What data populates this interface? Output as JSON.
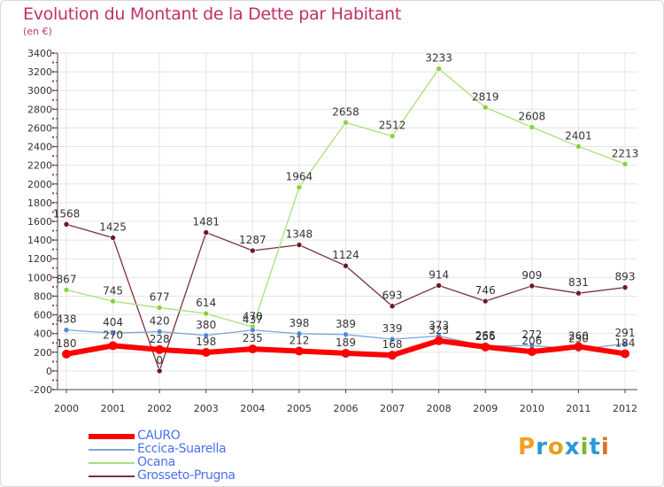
{
  "title": "Evolution du Montant de la Dette par Habitant",
  "subtitle": "(en €)",
  "brand": {
    "text": "Proxiti",
    "letters": [
      {
        "ch": "P",
        "color": "#f0a020"
      },
      {
        "ch": "r",
        "color": "#2a9ad8"
      },
      {
        "ch": "o",
        "color": "#e8a020"
      },
      {
        "ch": "x",
        "color": "#2a9ad8"
      },
      {
        "ch": "i",
        "color": "#7ab830"
      },
      {
        "ch": "t",
        "color": "#2a9ad8"
      },
      {
        "ch": "i",
        "color": "#e07020"
      }
    ]
  },
  "chart_data": {
    "type": "line",
    "title": "Evolution du Montant de la Dette par Habitant",
    "subtitle": "(en €)",
    "xlabel": "",
    "ylabel": "",
    "x": [
      "2000",
      "2001",
      "2002",
      "2003",
      "2004",
      "2005",
      "2006",
      "2007",
      "2008",
      "2009",
      "2010",
      "2011",
      "2012"
    ],
    "ylim": [
      -200,
      3400
    ],
    "yticks": [
      -200,
      0,
      200,
      400,
      600,
      800,
      1000,
      1200,
      1400,
      1600,
      1800,
      2000,
      2200,
      2400,
      2600,
      2800,
      3000,
      3200,
      3400
    ],
    "grid": true,
    "legend": "bottom-left",
    "series": [
      {
        "name": "CAURO",
        "color": "#ff0000",
        "values": [
          180,
          270,
          228,
          198,
          235,
          212,
          189,
          168,
          323,
          256,
          206,
          260,
          184
        ]
      },
      {
        "name": "Eccica-Suarella",
        "color": "#6699cc",
        "values": [
          438,
          404,
          420,
          380,
          437,
          398,
          389,
          339,
          373,
          265,
          272,
          230,
          291
        ]
      },
      {
        "name": "Ocana",
        "color": "#99dd66",
        "values": [
          867,
          745,
          677,
          614,
          470,
          null,
          null,
          null,
          null,
          null,
          null,
          null,
          null
        ],
        "values_all": [
          867,
          745,
          677,
          614,
          470,
          1964,
          2658,
          2512,
          3233,
          2819,
          2608,
          2401,
          2213
        ]
      },
      {
        "name": "Grosseto-Prugna",
        "color": "#6b1a24",
        "values": [
          1568,
          1425,
          0,
          1481,
          1287,
          1348,
          1124,
          693,
          914,
          746,
          909,
          831,
          893
        ]
      }
    ],
    "data_labels": {
      "CAURO": [
        "180",
        "270",
        "228",
        "198",
        "235",
        "212",
        "189",
        "168",
        "323",
        "256",
        "206",
        "260",
        "184"
      ],
      "Eccica-Suarella": [
        "438",
        "404",
        "420",
        "380",
        "437",
        "398",
        "389",
        "339",
        "373",
        "265",
        "272",
        "230",
        "291"
      ],
      "Ocana": [
        "867",
        "745",
        "677",
        "614",
        "470",
        "1964",
        "2658",
        "2512",
        "3233",
        "2819",
        "2608",
        "2401",
        "2213"
      ],
      "Grosseto-Prugna": [
        "1568",
        "1425",
        "0",
        "1481",
        "1287",
        "1348",
        "1124",
        "693",
        "914",
        "746",
        "909",
        "831",
        "893"
      ]
    }
  }
}
